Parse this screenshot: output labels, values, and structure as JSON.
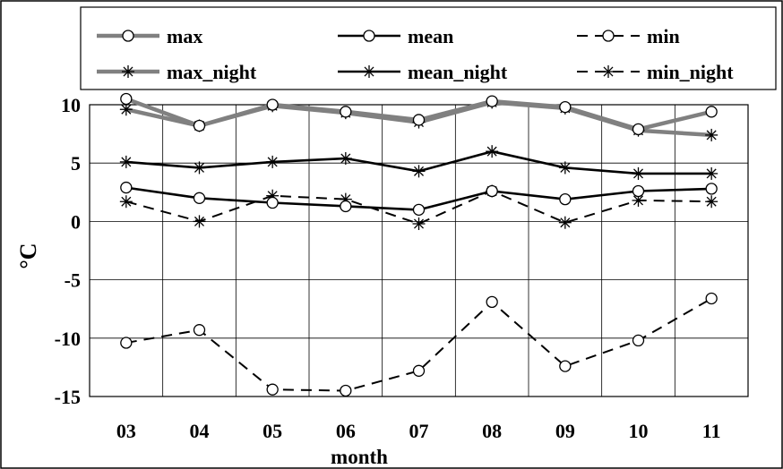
{
  "chart_data": {
    "type": "line",
    "categories": [
      "03",
      "04",
      "05",
      "06",
      "07",
      "08",
      "09",
      "10",
      "11"
    ],
    "xlabel": "month",
    "ylabel": "°C",
    "ylim": [
      -15,
      10
    ],
    "yticks": [
      10,
      5,
      0,
      -5,
      -10,
      -15
    ],
    "grid": true,
    "legend_position": "top",
    "series": [
      {
        "name": "max",
        "color": "#808080",
        "dash": "solid",
        "marker": "circle",
        "values": [
          10.5,
          8.2,
          10.0,
          9.4,
          8.7,
          10.3,
          9.8,
          7.9,
          9.4
        ]
      },
      {
        "name": "mean",
        "color": "#000000",
        "dash": "solid",
        "marker": "circle",
        "values": [
          2.9,
          2.0,
          1.6,
          1.3,
          1.0,
          2.6,
          1.9,
          2.6,
          2.8
        ]
      },
      {
        "name": "min",
        "color": "#000000",
        "dash": "dashed",
        "marker": "circle",
        "values": [
          -10.4,
          -9.3,
          -14.4,
          -14.5,
          -12.8,
          -6.9,
          -12.4,
          -10.2,
          -6.6
        ]
      },
      {
        "name": "max_night",
        "color": "#808080",
        "dash": "solid",
        "marker": "star",
        "values": [
          9.6,
          8.2,
          9.9,
          9.3,
          8.5,
          10.2,
          9.7,
          7.8,
          7.4
        ]
      },
      {
        "name": "mean_night",
        "color": "#000000",
        "dash": "solid",
        "marker": "star",
        "values": [
          5.1,
          4.6,
          5.1,
          5.4,
          4.3,
          6.0,
          4.6,
          4.1,
          4.1
        ]
      },
      {
        "name": "min_night",
        "color": "#000000",
        "dash": "dashed",
        "marker": "star",
        "values": [
          1.7,
          0.0,
          2.2,
          1.9,
          -0.2,
          2.6,
          -0.1,
          1.8,
          1.7
        ]
      }
    ]
  }
}
